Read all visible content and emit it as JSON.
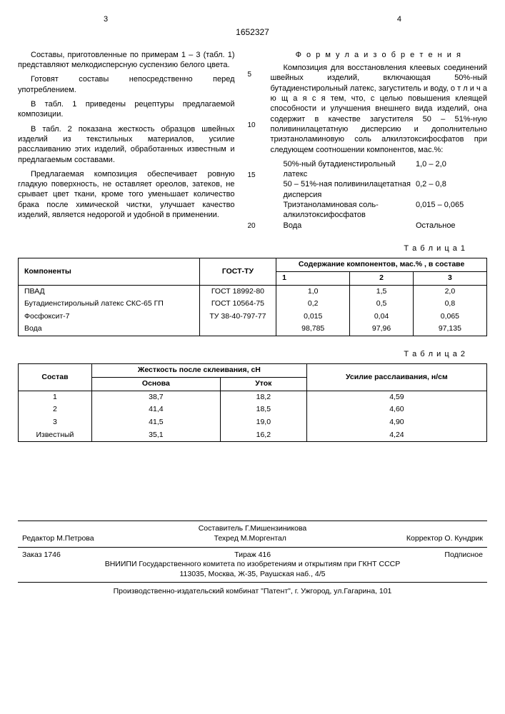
{
  "header": {
    "left_page": "3",
    "right_page": "4",
    "doc_number": "1652327"
  },
  "left_col": {
    "p1": "Составы, приготовленные по примерам 1 – 3 (табл. 1) представляют мелкодисперсную суспензию белого цвета.",
    "p2": "Готовят составы непосредственно перед употреблением.",
    "p3": "В табл. 1 приведены рецептуры предлагаемой композиции.",
    "p4": "В табл. 2 показана жесткость образцов швейных изделий из текстильных материалов, усилие расслаиванию этих изделий, обработанных известным и предлагаемым составами.",
    "p5": "Предлагаемая композиция обеспечивает ровную гладкую поверхность, не оставляет ореолов, затеков, не срывает цвет ткани, кроме того уменьшает количество брака после химической чистки, улучшает качество изделий, является недорогой и удобной в применении."
  },
  "line_numbers": [
    "5",
    "10",
    "15",
    "20"
  ],
  "right_col": {
    "formula_title": "Ф о р м у л а   и з о б р е т е н и я",
    "p1": "Композиция для восстановления клеевых соединений швейных изделий, включающая 50%-ный бутадиенстирольный латекс, загуститель и воду, о т л и ч а ю щ а я с я  тем, что, с целью повышения клеящей способности и улучшения внешнего вида изделий, она содержит в качестве загустителя 50 – 51%-ную поливинилацетатную дисперсию и дополнительно триэтаноламиновую соль алкилэтоксифосфатов при следующем соотношении компонентов, мас.%:",
    "components": [
      {
        "name": "50%-ный бутадиенстирольный латекс",
        "value": "1,0 – 2,0"
      },
      {
        "name": "50 – 51%-ная поливинилацетатная дисперсия",
        "value": "0,2 – 0,8"
      },
      {
        "name": "Триэтаноламиновая соль-алкилэтоксифосфатов",
        "value": "0,015 – 0,065"
      },
      {
        "name": "Вода",
        "value": "Остальное"
      }
    ]
  },
  "table1": {
    "label": "Т а б л и ц а  1",
    "head": {
      "c1": "Компоненты",
      "c2": "ГОСТ-ТУ",
      "c3": "Содержание компонентов, мас.% , в составе",
      "s1": "1",
      "s2": "2",
      "s3": "3"
    },
    "rows": [
      {
        "c1": "ПВАД",
        "c2": "ГОСТ 18992-80",
        "v1": "1,0",
        "v2": "1,5",
        "v3": "2,0"
      },
      {
        "c1": "Бутадиенстирольный латекс СКС-65 ГП",
        "c2": "ГОСТ 10564-75",
        "v1": "0,2",
        "v2": "0,5",
        "v3": "0,8"
      },
      {
        "c1": "Фосфоксит-7",
        "c2": "ТУ 38-40-797-77",
        "v1": "0,015",
        "v2": "0,04",
        "v3": "0,065"
      },
      {
        "c1": "Вода",
        "c2": "",
        "v1": "98,785",
        "v2": "97,96",
        "v3": "97,135"
      }
    ]
  },
  "table2": {
    "label": "Т а б л и ц а  2",
    "head": {
      "c1": "Состав",
      "c2": "Жесткость после склеивания, сН",
      "s1": "Основа",
      "s2": "Уток",
      "c3": "Усилие расслаивания, н/см"
    },
    "rows": [
      {
        "c1": "1",
        "v1": "38,7",
        "v2": "18,2",
        "v3": "4,59"
      },
      {
        "c1": "2",
        "v1": "41,4",
        "v2": "18,5",
        "v3": "4,60"
      },
      {
        "c1": "3",
        "v1": "41,5",
        "v2": "19,0",
        "v3": "4,90"
      },
      {
        "c1": "Известный",
        "v1": "35,1",
        "v2": "16,2",
        "v3": "4,24"
      }
    ]
  },
  "footer": {
    "compiler": "Составитель Г.Мишензиникова",
    "editor": "Редактор М.Петрова",
    "techred": "Техред М.Моргентал",
    "corrector": "Корректор  О. Кундрик",
    "order": "Заказ  1746",
    "tirazh": "Тираж 416",
    "subscr": "Подписное",
    "org": "ВНИИПИ Государственного комитета по изобретениям и открытиям при ГКНТ СССР",
    "addr": "113035, Москва, Ж-35, Раушская наб., 4/5",
    "prod": "Производственно-издательский комбинат \"Патент\", г. Ужгород, ул.Гагарина, 101"
  }
}
